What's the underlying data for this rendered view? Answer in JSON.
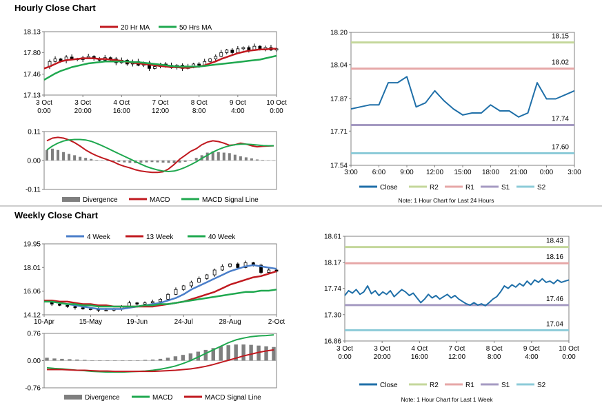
{
  "sections": {
    "hourly_title": "Hourly Close Chart",
    "weekly_title": "Weekly Close Chart"
  },
  "colors": {
    "ma20": "#c0191f",
    "ma50": "#1fa84f",
    "macd_blue": "#4a7ec9",
    "close": "#1f6fa8",
    "r2": "#c4d79b",
    "r1": "#e6a7a7",
    "s1": "#a59ac2",
    "s2": "#8ccbd8",
    "divergence": "#7f7f7f",
    "axis": "#808080"
  },
  "chart_data": [
    {
      "id": "hourly_price",
      "type": "candlestick",
      "legend": [
        "20 Hr MA",
        "50 Hrs MA"
      ],
      "y_ticks": [
        "18.13",
        "17.80",
        "17.46",
        "17.13"
      ],
      "ylim": [
        17.13,
        18.13
      ],
      "x_ticks": [
        [
          "3 Oct",
          "0:00"
        ],
        [
          "3 Oct",
          "20:00"
        ],
        [
          "4 Oct",
          "16:00"
        ],
        [
          "7 Oct",
          "12:00"
        ],
        [
          "8 Oct",
          "8:00"
        ],
        [
          "9 Oct",
          "4:00"
        ],
        [
          "10 Oct",
          "0:00"
        ]
      ],
      "close": [
        17.58,
        17.66,
        17.7,
        17.67,
        17.73,
        17.7,
        17.69,
        17.72,
        17.74,
        17.7,
        17.68,
        17.72,
        17.7,
        17.64,
        17.68,
        17.62,
        17.66,
        17.6,
        17.64,
        17.55,
        17.58,
        17.62,
        17.6,
        17.56,
        17.6,
        17.55,
        17.58,
        17.62,
        17.6,
        17.66,
        17.7,
        17.74,
        17.8,
        17.84,
        17.8,
        17.86,
        17.88,
        17.84,
        17.9,
        17.86,
        17.88,
        17.84,
        17.86
      ],
      "ma20": [
        17.55,
        17.58,
        17.62,
        17.66,
        17.68,
        17.69,
        17.7,
        17.71,
        17.71,
        17.71,
        17.7,
        17.7,
        17.69,
        17.68,
        17.67,
        17.65,
        17.64,
        17.63,
        17.62,
        17.61,
        17.6,
        17.59,
        17.58,
        17.57,
        17.57,
        17.56,
        17.56,
        17.57,
        17.58,
        17.6,
        17.63,
        17.66,
        17.7,
        17.73,
        17.76,
        17.79,
        17.81,
        17.83,
        17.84,
        17.85,
        17.85,
        17.86,
        17.86
      ],
      "ma50": [
        17.37,
        17.42,
        17.47,
        17.51,
        17.54,
        17.57,
        17.59,
        17.61,
        17.63,
        17.64,
        17.65,
        17.66,
        17.66,
        17.66,
        17.66,
        17.66,
        17.65,
        17.65,
        17.64,
        17.63,
        17.62,
        17.61,
        17.6,
        17.59,
        17.58,
        17.58,
        17.58,
        17.58,
        17.58,
        17.59,
        17.6,
        17.61,
        17.62,
        17.63,
        17.64,
        17.65,
        17.66,
        17.67,
        17.68,
        17.69,
        17.71,
        17.73,
        17.75
      ]
    },
    {
      "id": "hourly_macd",
      "type": "bar+line",
      "legend": [
        "Divergence",
        "MACD",
        "MACD Signal Line"
      ],
      "y_ticks": [
        "0.11",
        "0.00",
        "-0.11"
      ],
      "ylim": [
        -0.11,
        0.11
      ],
      "divergence": [
        0.04,
        0.045,
        0.04,
        0.032,
        0.025,
        0.02,
        0.014,
        0.01,
        0.006,
        0.002,
        0.0,
        -0.002,
        -0.004,
        -0.005,
        -0.007,
        -0.009,
        -0.01,
        -0.008,
        -0.007,
        -0.006,
        -0.007,
        -0.008,
        -0.009,
        -0.01,
        -0.008,
        -0.005,
        -0.002,
        0.01,
        0.02,
        0.03,
        0.035,
        0.032,
        0.03,
        0.028,
        0.022,
        0.016,
        0.012,
        0.008,
        0.004,
        0.002,
        0.001,
        0.0
      ],
      "macd": [
        0.075,
        0.085,
        0.088,
        0.085,
        0.078,
        0.068,
        0.055,
        0.04,
        0.028,
        0.018,
        0.01,
        0.003,
        -0.005,
        -0.015,
        -0.022,
        -0.028,
        -0.035,
        -0.04,
        -0.043,
        -0.045,
        -0.045,
        -0.043,
        -0.032,
        -0.015,
        0.005,
        0.02,
        0.035,
        0.045,
        0.06,
        0.07,
        0.075,
        0.072,
        0.066,
        0.058,
        0.06,
        0.066,
        0.062,
        0.056,
        0.052,
        0.054,
        0.055,
        0.056
      ],
      "signal": [
        0.04,
        0.055,
        0.066,
        0.074,
        0.078,
        0.08,
        0.08,
        0.078,
        0.073,
        0.065,
        0.056,
        0.046,
        0.036,
        0.026,
        0.016,
        0.006,
        -0.004,
        -0.014,
        -0.023,
        -0.03,
        -0.036,
        -0.04,
        -0.042,
        -0.04,
        -0.034,
        -0.026,
        -0.016,
        -0.005,
        0.008,
        0.02,
        0.032,
        0.042,
        0.05,
        0.056,
        0.06,
        0.062,
        0.062,
        0.061,
        0.059,
        0.057,
        0.056,
        0.056
      ]
    },
    {
      "id": "hourly_pivots",
      "type": "line",
      "legend": [
        "Close",
        "R2",
        "R1",
        "S1",
        "S2"
      ],
      "note": "Note: 1 Hour Chart for Last 24 Hours",
      "y_ticks": [
        "18.20",
        "18.04",
        "17.87",
        "17.71",
        "17.54"
      ],
      "ylim": [
        17.54,
        18.2
      ],
      "x_ticks": [
        "3:00",
        "6:00",
        "9:00",
        "12:00",
        "15:00",
        "18:00",
        "21:00",
        "0:00",
        "3:00"
      ],
      "levels": [
        {
          "name": "R2",
          "value": 18.15,
          "label": "18.15"
        },
        {
          "name": "R1",
          "value": 18.02,
          "label": "18.02"
        },
        {
          "name": "S1",
          "value": 17.74,
          "label": "17.74"
        },
        {
          "name": "S2",
          "value": 17.6,
          "label": "17.60"
        }
      ],
      "close": [
        17.82,
        17.83,
        17.84,
        17.84,
        17.95,
        17.95,
        17.98,
        17.83,
        17.85,
        17.91,
        17.86,
        17.82,
        17.79,
        17.8,
        17.8,
        17.84,
        17.81,
        17.81,
        17.78,
        17.8,
        17.95,
        17.87,
        17.87,
        17.89,
        17.91
      ]
    },
    {
      "id": "weekly_price",
      "type": "candlestick",
      "legend": [
        "4 Week",
        "13 Week",
        "40 Week"
      ],
      "y_ticks": [
        "19.95",
        "18.01",
        "16.06",
        "14.12"
      ],
      "ylim": [
        14.12,
        19.95
      ],
      "x_ticks": [
        "10-Apr",
        "15-May",
        "19-Jun",
        "24-Jul",
        "28-Aug",
        "2-Oct"
      ],
      "close": [
        15.2,
        15.0,
        14.9,
        14.8,
        14.7,
        14.6,
        14.6,
        14.5,
        14.5,
        14.6,
        14.8,
        15.1,
        15.0,
        15.1,
        15.2,
        15.4,
        15.8,
        16.2,
        16.5,
        16.8,
        17.1,
        17.4,
        17.8,
        18.1,
        18.3,
        18.0,
        18.4,
        18.2,
        17.6,
        17.8,
        17.7
      ],
      "ma4": [
        15.3,
        15.2,
        15.1,
        15.0,
        14.9,
        14.8,
        14.7,
        14.6,
        14.6,
        14.6,
        14.6,
        14.7,
        14.8,
        14.9,
        15.0,
        15.1,
        15.3,
        15.5,
        15.8,
        16.2,
        16.5,
        16.8,
        17.1,
        17.4,
        17.7,
        17.9,
        18.1,
        18.2,
        18.1,
        18.0,
        17.9
      ],
      "ma13": [
        15.3,
        15.3,
        15.2,
        15.2,
        15.1,
        15.0,
        15.0,
        14.9,
        14.9,
        14.8,
        14.8,
        14.8,
        14.8,
        14.8,
        14.8,
        14.9,
        15.0,
        15.1,
        15.2,
        15.4,
        15.6,
        15.8,
        16.0,
        16.3,
        16.6,
        16.8,
        17.0,
        17.2,
        17.3,
        17.5,
        17.7
      ],
      "ma40": [
        15.2,
        15.2,
        15.1,
        15.0,
        15.0,
        14.9,
        14.9,
        14.8,
        14.8,
        14.8,
        14.8,
        14.8,
        14.8,
        14.9,
        14.9,
        15.0,
        15.0,
        15.1,
        15.2,
        15.3,
        15.4,
        15.5,
        15.6,
        15.7,
        15.8,
        15.9,
        16.0,
        16.0,
        16.1,
        16.1,
        16.2
      ]
    },
    {
      "id": "weekly_macd",
      "type": "bar+line",
      "legend": [
        "Divergence",
        "MACD",
        "MACD Signal Line"
      ],
      "y_ticks": [
        "0.76",
        "0.00",
        "-0.76"
      ],
      "ylim": [
        -0.76,
        0.76
      ],
      "divergence": [
        0.08,
        0.06,
        0.05,
        0.04,
        0.03,
        0.02,
        0.01,
        0.0,
        -0.01,
        -0.01,
        -0.01,
        0.0,
        0.01,
        0.02,
        0.03,
        0.05,
        0.08,
        0.12,
        0.16,
        0.2,
        0.25,
        0.3,
        0.35,
        0.4,
        0.43,
        0.45,
        0.45,
        0.44,
        0.42,
        0.4,
        0.38
      ],
      "macd": [
        -0.2,
        -0.22,
        -0.23,
        -0.25,
        -0.27,
        -0.28,
        -0.3,
        -0.31,
        -0.32,
        -0.32,
        -0.32,
        -0.31,
        -0.3,
        -0.29,
        -0.27,
        -0.24,
        -0.2,
        -0.15,
        -0.08,
        0.0,
        0.1,
        0.2,
        0.3,
        0.4,
        0.5,
        0.58,
        0.63,
        0.67,
        0.69,
        0.7,
        0.72
      ],
      "signal": [
        -0.25,
        -0.25,
        -0.25,
        -0.26,
        -0.27,
        -0.27,
        -0.28,
        -0.29,
        -0.29,
        -0.3,
        -0.3,
        -0.3,
        -0.3,
        -0.3,
        -0.3,
        -0.29,
        -0.28,
        -0.27,
        -0.25,
        -0.23,
        -0.2,
        -0.16,
        -0.11,
        -0.05,
        0.01,
        0.07,
        0.13,
        0.18,
        0.23,
        0.27,
        0.3
      ]
    },
    {
      "id": "weekly_pivots",
      "type": "line",
      "legend": [
        "Close",
        "R2",
        "R1",
        "S1",
        "S2"
      ],
      "note": "Note: 1 Hour Chart for Last 1 Week",
      "y_ticks": [
        "18.61",
        "18.17",
        "17.74",
        "17.30",
        "16.86"
      ],
      "ylim": [
        16.86,
        18.61
      ],
      "x_ticks": [
        [
          "3 Oct",
          "0:00"
        ],
        [
          "3 Oct",
          "20:00"
        ],
        [
          "4 Oct",
          "16:00"
        ],
        [
          "7 Oct",
          "12:00"
        ],
        [
          "8 Oct",
          "8:00"
        ],
        [
          "9 Oct",
          "4:00"
        ],
        [
          "10 Oct",
          "0:00"
        ]
      ],
      "levels": [
        {
          "name": "R2",
          "value": 18.43,
          "label": "18.43"
        },
        {
          "name": "R1",
          "value": 18.16,
          "label": "18.16"
        },
        {
          "name": "S1",
          "value": 17.46,
          "label": "17.46"
        },
        {
          "name": "S2",
          "value": 17.04,
          "label": "17.04"
        }
      ],
      "close": [
        17.62,
        17.7,
        17.66,
        17.72,
        17.64,
        17.68,
        17.78,
        17.65,
        17.7,
        17.62,
        17.68,
        17.64,
        17.7,
        17.6,
        17.66,
        17.72,
        17.68,
        17.62,
        17.66,
        17.58,
        17.5,
        17.56,
        17.64,
        17.58,
        17.62,
        17.56,
        17.6,
        17.64,
        17.58,
        17.62,
        17.56,
        17.52,
        17.48,
        17.46,
        17.5,
        17.46,
        17.48,
        17.45,
        17.5,
        17.56,
        17.6,
        17.68,
        17.78,
        17.74,
        17.8,
        17.76,
        17.82,
        17.78,
        17.86,
        17.8,
        17.88,
        17.84,
        17.9,
        17.84,
        17.86,
        17.82,
        17.88,
        17.84,
        17.86,
        17.88
      ]
    }
  ]
}
